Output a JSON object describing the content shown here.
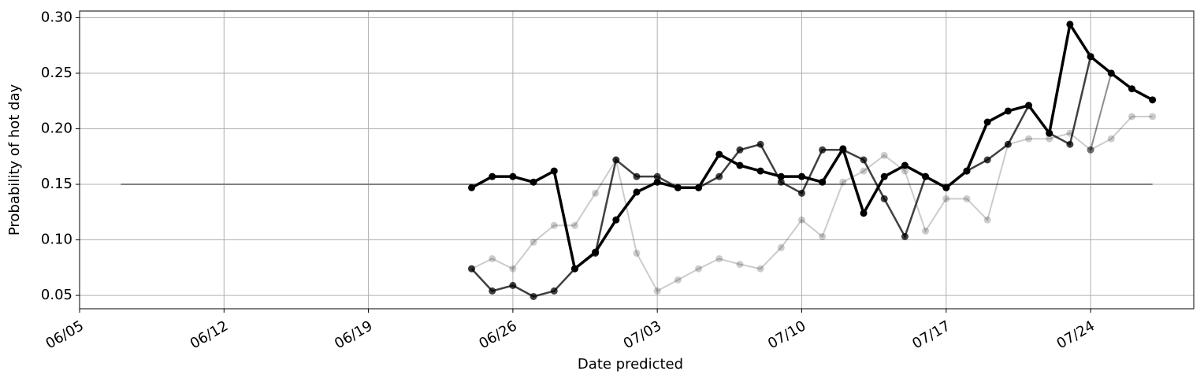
{
  "chart_data": {
    "type": "line",
    "x_label": "Date predicted",
    "y_label": "Probability of hot day",
    "x": [
      "06/24",
      "06/25",
      "06/26",
      "06/27",
      "06/28",
      "06/29",
      "06/30",
      "07/01",
      "07/02",
      "07/03",
      "07/04",
      "07/05",
      "07/06",
      "07/07",
      "07/08",
      "07/09",
      "07/10",
      "07/11",
      "07/12",
      "07/13",
      "07/14",
      "07/15",
      "07/16",
      "07/17",
      "07/18",
      "07/19",
      "07/20",
      "07/21",
      "07/22",
      "07/23",
      "07/24",
      "07/25",
      "07/26",
      "07/27"
    ],
    "series": [
      {
        "color": "#000000",
        "alpha": 0.2,
        "width": 2,
        "values": [
          0.074,
          0.083,
          0.074,
          0.098,
          0.113,
          0.113,
          0.142,
          0.172,
          0.088,
          0.054,
          0.064,
          0.074,
          0.083,
          0.078,
          0.074,
          0.093,
          0.118,
          0.103,
          0.152,
          0.162,
          0.176,
          0.162,
          0.108,
          0.137,
          0.137,
          0.118,
          0.186,
          0.191,
          0.191,
          0.196,
          0.181,
          0.191,
          0.211,
          0.211
        ]
      },
      {
        "color": "#000000",
        "alpha": 0.45,
        "width": 2,
        "values": [
          null,
          null,
          null,
          null,
          null,
          null,
          null,
          null,
          null,
          null,
          null,
          null,
          null,
          null,
          null,
          null,
          null,
          null,
          null,
          null,
          null,
          null,
          null,
          null,
          null,
          null,
          null,
          null,
          null,
          null,
          0.181,
          0.25,
          null,
          null
        ]
      },
      {
        "color": "#000000",
        "alpha": 0.75,
        "width": 2.5,
        "values": [
          0.074,
          0.054,
          0.059,
          0.049,
          0.054,
          0.074,
          0.088,
          0.172,
          0.157,
          0.157,
          0.147,
          0.147,
          0.157,
          0.181,
          0.186,
          0.152,
          0.142,
          0.181,
          0.181,
          0.172,
          0.137,
          0.103,
          0.157,
          0.147,
          0.162,
          0.172,
          0.186,
          0.221,
          0.196,
          0.186,
          0.265,
          null,
          null,
          null
        ]
      },
      {
        "color": "#000000",
        "alpha": 1,
        "width": 3.5,
        "values": [
          0.147,
          0.157,
          0.157,
          0.152,
          0.162,
          0.074,
          0.089,
          0.118,
          0.143,
          0.152,
          0.147,
          0.147,
          0.177,
          0.167,
          0.162,
          0.157,
          0.157,
          0.152,
          0.182,
          0.124,
          0.157,
          0.167,
          0.157,
          0.147,
          0.162,
          0.206,
          0.216,
          0.221,
          0.196,
          0.294,
          0.265,
          0.25,
          0.236,
          0.226
        ]
      }
    ],
    "reference_line": {
      "value": 0.15,
      "x": [
        "06/07",
        "07/27"
      ],
      "color": "#808080"
    },
    "xlim": [
      "06/05",
      "07/29"
    ],
    "xticks": [
      "06/05",
      "06/12",
      "06/19",
      "06/26",
      "07/03",
      "07/10",
      "07/17",
      "07/24"
    ],
    "ylim": [
      0.038,
      0.306
    ],
    "yticks": [
      0.05,
      {
        "value": 0.1,
        "label": "0.10"
      },
      0.15,
      {
        "value": 0.2,
        "label": "0.20"
      },
      0.25,
      {
        "value": 0.3,
        "label": "0.30"
      }
    ],
    "grid": true
  }
}
